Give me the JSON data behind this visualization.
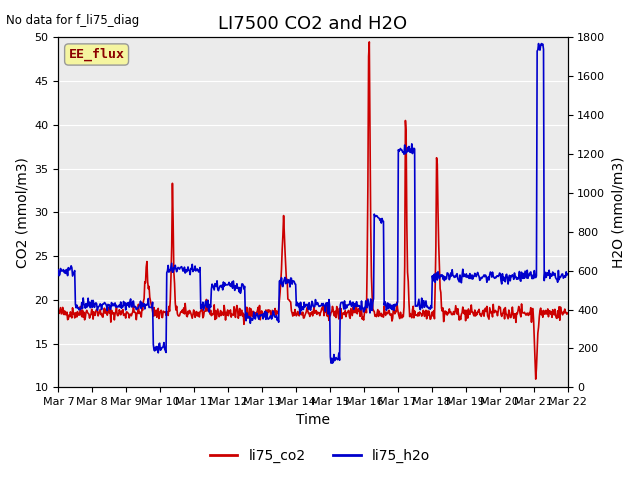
{
  "title": "LI7500 CO2 and H2O",
  "top_left_text": "No data for f_li75_diag",
  "box_label": "EE_flux",
  "xlabel": "Time",
  "ylabel_left": "CO2 (mmol/m3)",
  "ylabel_right": "H2O (mmol/m3)",
  "ylim_left": [
    10,
    50
  ],
  "ylim_right": [
    0,
    1800
  ],
  "yticks_left": [
    10,
    15,
    20,
    25,
    30,
    35,
    40,
    45,
    50
  ],
  "yticks_right": [
    0,
    200,
    400,
    600,
    800,
    1000,
    1200,
    1400,
    1600,
    1800
  ],
  "xtick_labels": [
    "Mar 7",
    "Mar 8",
    "Mar 9",
    "Mar 10",
    "Mar 11",
    "Mar 12",
    "Mar 13",
    "Mar 14",
    "Mar 15",
    "Mar 16",
    "Mar 17",
    "Mar 18",
    "Mar 19",
    "Mar 20",
    "Mar 21",
    "Mar 22"
  ],
  "legend_labels": [
    "li75_co2",
    "li75_h2o"
  ],
  "co2_color": "#cc0000",
  "h2o_color": "#0000cc",
  "plot_bg_color": "#ebebeb",
  "box_label_color": "#8b0000",
  "box_bg_color": "#f5f5a0",
  "title_fontsize": 13,
  "label_fontsize": 10,
  "tick_fontsize": 8,
  "linewidth": 1.2,
  "n_days": 15
}
